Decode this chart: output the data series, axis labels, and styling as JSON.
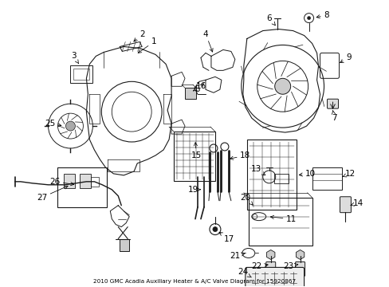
{
  "title": "2010 GMC Acadia Auxiliary Heater & A/C Valve Diagram for 15920867",
  "bg": "#ffffff",
  "lc": "#1a1a1a",
  "fig_w": 4.89,
  "fig_h": 3.6,
  "dpi": 100
}
